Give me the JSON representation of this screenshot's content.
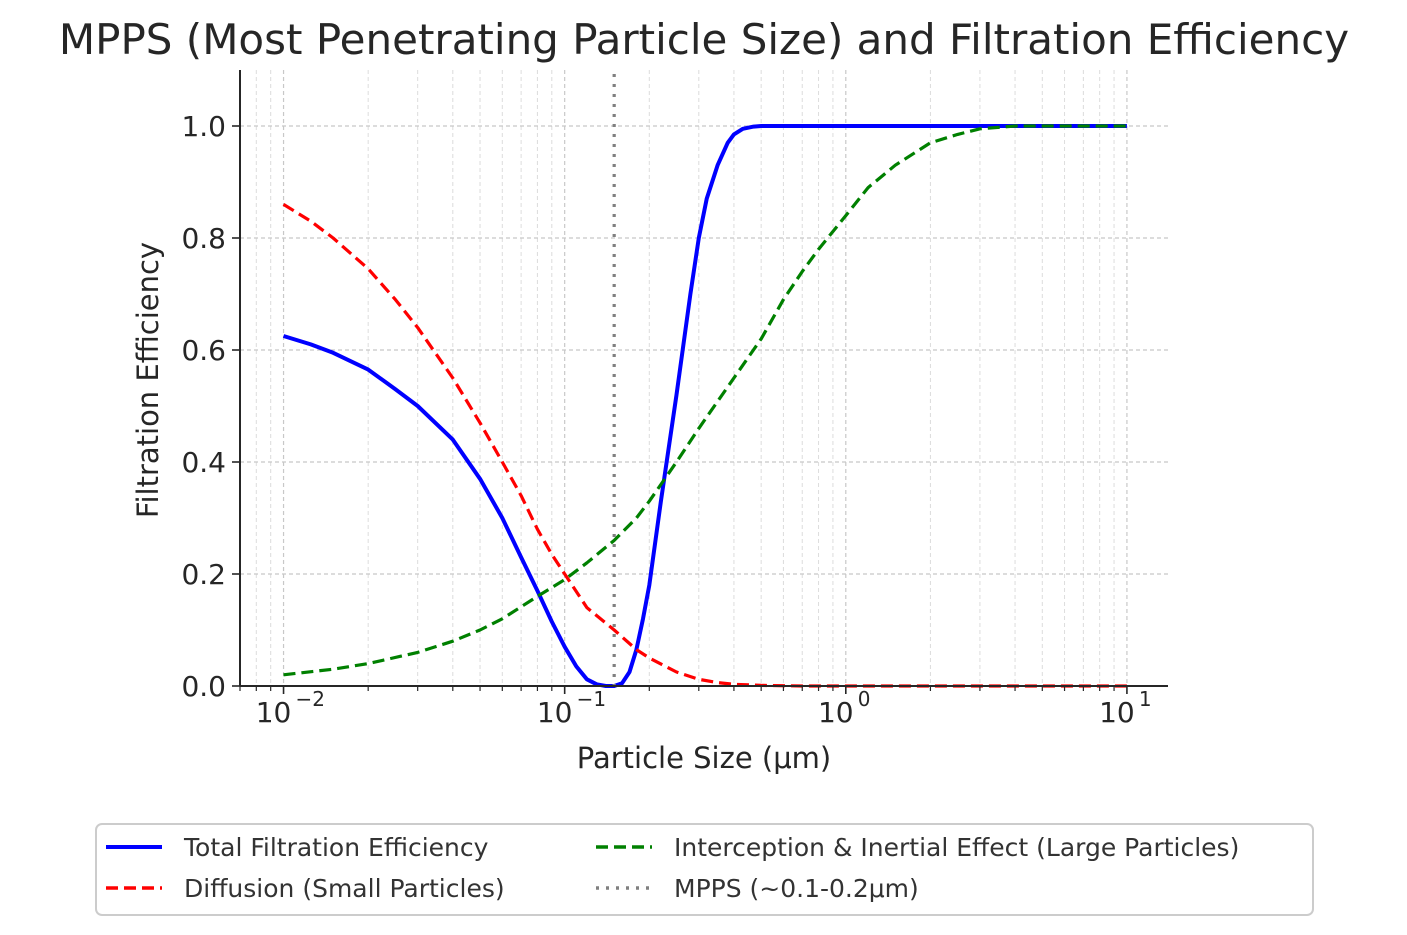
{
  "chart_data": {
    "type": "line",
    "title": "MPPS (Most Penetrating Particle Size) and Filtration Efficiency",
    "xlabel": "Particle Size (μm)",
    "ylabel": "Filtration Efficiency",
    "xscale": "log",
    "xlim": [
      0.007,
      14
    ],
    "ylim": [
      0,
      1.1
    ],
    "xticks": [
      {
        "value": 0.01,
        "base": "10",
        "exp": "−2"
      },
      {
        "value": 0.1,
        "base": "10",
        "exp": "−1"
      },
      {
        "value": 1,
        "base": "10",
        "exp": "0"
      },
      {
        "value": 10,
        "base": "10",
        "exp": "1"
      }
    ],
    "yticks": [
      {
        "value": 0.0,
        "label": "0.0"
      },
      {
        "value": 0.2,
        "label": "0.2"
      },
      {
        "value": 0.4,
        "label": "0.4"
      },
      {
        "value": 0.6,
        "label": "0.6"
      },
      {
        "value": 0.8,
        "label": "0.8"
      },
      {
        "value": 1.0,
        "label": "1.0"
      }
    ],
    "grid": true,
    "legend_position": "bottom-center",
    "series": [
      {
        "name": "Total Filtration Efficiency",
        "color": "#0000ff",
        "style": "solid",
        "x": [
          0.01,
          0.0125,
          0.015,
          0.02,
          0.025,
          0.03,
          0.04,
          0.05,
          0.06,
          0.07,
          0.08,
          0.09,
          0.1,
          0.11,
          0.12,
          0.13,
          0.14,
          0.15,
          0.16,
          0.17,
          0.18,
          0.19,
          0.2,
          0.22,
          0.25,
          0.28,
          0.3,
          0.32,
          0.35,
          0.38,
          0.4,
          0.43,
          0.47,
          0.5,
          0.6,
          1,
          2,
          5,
          10
        ],
        "y": [
          0.625,
          0.61,
          0.595,
          0.565,
          0.53,
          0.5,
          0.44,
          0.37,
          0.3,
          0.23,
          0.17,
          0.115,
          0.07,
          0.035,
          0.012,
          0.003,
          0.0,
          0.0,
          0.005,
          0.025,
          0.065,
          0.12,
          0.18,
          0.33,
          0.52,
          0.7,
          0.8,
          0.87,
          0.93,
          0.97,
          0.985,
          0.995,
          0.999,
          1.0,
          1.0,
          1.0,
          1.0,
          1.0,
          1.0
        ]
      },
      {
        "name": "Diffusion (Small Particles)",
        "color": "#ff0000",
        "style": "dashed",
        "x": [
          0.01,
          0.0125,
          0.015,
          0.02,
          0.025,
          0.03,
          0.04,
          0.05,
          0.06,
          0.07,
          0.08,
          0.09,
          0.1,
          0.12,
          0.15,
          0.18,
          0.2,
          0.25,
          0.3,
          0.35,
          0.4,
          0.5,
          0.7,
          1,
          2,
          5,
          10
        ],
        "y": [
          0.86,
          0.83,
          0.8,
          0.745,
          0.69,
          0.64,
          0.55,
          0.47,
          0.4,
          0.34,
          0.28,
          0.235,
          0.2,
          0.14,
          0.1,
          0.065,
          0.05,
          0.025,
          0.012,
          0.006,
          0.003,
          0.001,
          0.0,
          0.0,
          0.0,
          0.0,
          0.0
        ]
      },
      {
        "name": "Interception & Inertial Effect (Large Particles)",
        "color": "#008000",
        "style": "dashed",
        "x": [
          0.01,
          0.015,
          0.02,
          0.03,
          0.04,
          0.05,
          0.06,
          0.08,
          0.1,
          0.12,
          0.15,
          0.18,
          0.2,
          0.25,
          0.3,
          0.4,
          0.5,
          0.6,
          0.7,
          0.8,
          1,
          1.2,
          1.5,
          2,
          2.5,
          3,
          4,
          5,
          7,
          10
        ],
        "y": [
          0.02,
          0.03,
          0.04,
          0.06,
          0.08,
          0.1,
          0.12,
          0.16,
          0.19,
          0.22,
          0.26,
          0.3,
          0.33,
          0.4,
          0.46,
          0.55,
          0.62,
          0.69,
          0.74,
          0.78,
          0.84,
          0.89,
          0.93,
          0.97,
          0.985,
          0.995,
          1.0,
          1.0,
          1.0,
          1.0
        ]
      }
    ],
    "vline": {
      "name": "MPPS (~0.1-0.2μm)",
      "x": 0.15,
      "color": "#808080",
      "style": "dotted"
    }
  }
}
